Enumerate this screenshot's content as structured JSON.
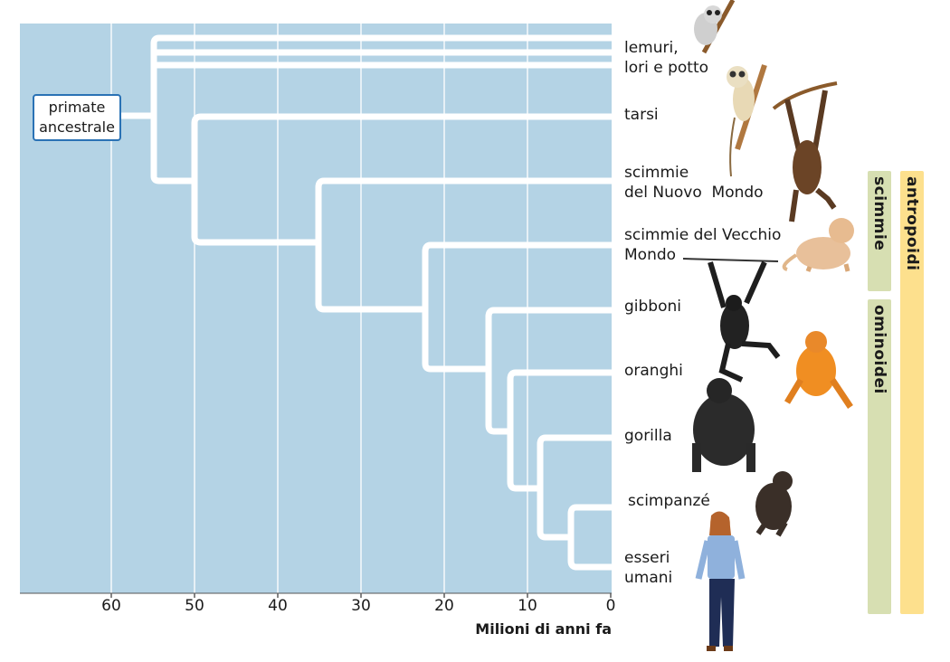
{
  "root_label": "primate\nancestrale",
  "x_axis": {
    "title": "Milioni di anni fa",
    "ticks": [
      "60",
      "50",
      "40",
      "30",
      "20",
      "10",
      "0"
    ]
  },
  "tips": [
    {
      "id": "lemurs",
      "label": "lemuri,\nlori e potto"
    },
    {
      "id": "tarsiers",
      "label": "tarsi"
    },
    {
      "id": "nwm",
      "label": "scimmie\ndel Nuovo  Mondo"
    },
    {
      "id": "owm",
      "label": "scimmie del Vecchio\nMondo"
    },
    {
      "id": "gibbons",
      "label": "gibboni"
    },
    {
      "id": "orangutans",
      "label": "oranghi"
    },
    {
      "id": "gorillas",
      "label": "gorilla"
    },
    {
      "id": "chimps",
      "label": "scimpanzé"
    },
    {
      "id": "humans",
      "label": "esseri\numani"
    }
  ],
  "groups": {
    "scimmie": "scimmie",
    "ominoidei": "ominoidei",
    "antropoidi": "antropoidi"
  },
  "colors": {
    "plot_bg": "#b4d3e5",
    "branch": "#ffffff",
    "root_border": "#2a72b5",
    "group_green": "#d7dfb2",
    "group_yellow": "#fde08d"
  },
  "illustrations": [
    "tarsier-illustration",
    "loris-illustration",
    "spider-monkey-illustration",
    "macaque-illustration",
    "gibbon-illustration",
    "orangutan-illustration",
    "gorilla-illustration",
    "chimpanzee-illustration",
    "human-illustration"
  ]
}
